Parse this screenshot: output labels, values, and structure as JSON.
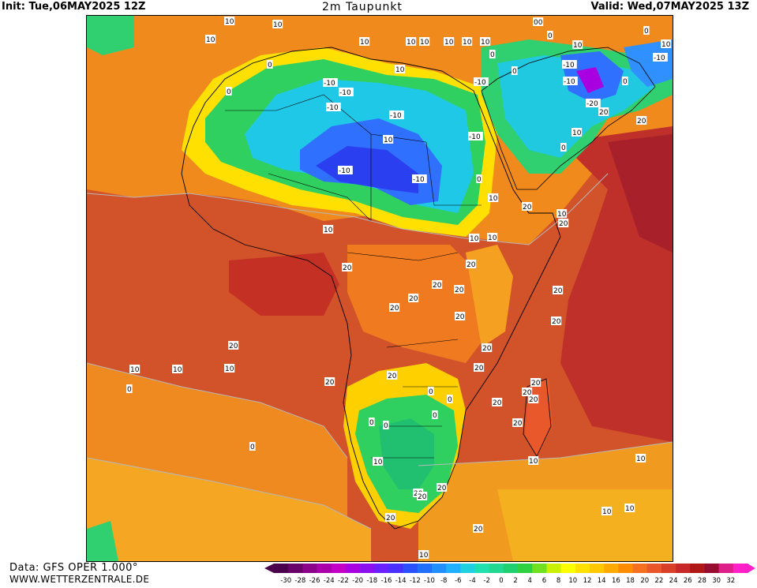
{
  "header": {
    "init": "Init: Tue,06MAY2025 12Z",
    "title": "2m Taupunkt",
    "valid": "Valid: Wed,07MAY2025 13Z"
  },
  "footer": {
    "data_source": "Data: GFS OPER 1.000°",
    "website": "WWW.WETTERZENTRALE.DE"
  },
  "legend": {
    "ticks": [
      "-30",
      "-28",
      "-26",
      "-24",
      "-22",
      "-20",
      "-18",
      "-16",
      "-14",
      "-12",
      "-10",
      "-8",
      "-6",
      "-4",
      "-2",
      "0",
      "2",
      "4",
      "6",
      "8",
      "10",
      "12",
      "14",
      "16",
      "18",
      "20",
      "22",
      "24",
      "26",
      "28",
      "30",
      "32"
    ],
    "colors": [
      "#4b004b",
      "#6a006a",
      "#8a008a",
      "#aa00aa",
      "#c400c8",
      "#a800e0",
      "#8a10f0",
      "#6b20ff",
      "#4a30ff",
      "#2a50ff",
      "#2070ff",
      "#2090ff",
      "#20b0ff",
      "#20d0e0",
      "#20e0b0",
      "#20d890",
      "#20d070",
      "#30d040",
      "#70e020",
      "#c8f000",
      "#ffff00",
      "#ffe000",
      "#ffc800",
      "#ffaa00",
      "#ff8c00",
      "#f47020",
      "#e8582a",
      "#d84028",
      "#c82828",
      "#b01818",
      "#980c30",
      "#e0208a",
      "#ff20c8"
    ]
  },
  "contour_labels": [
    "10",
    "10",
    "10",
    "10",
    "10",
    "10",
    "10",
    "10",
    "10",
    "10",
    "00",
    "0",
    "0",
    "10",
    "10",
    "0",
    "-10",
    "-10",
    "-10",
    "-10",
    "0",
    "0",
    "-10",
    "-20",
    "20",
    "20",
    "10",
    "0",
    "-10",
    "-10",
    "-10",
    "-10",
    "-10",
    "0",
    "0",
    "10",
    "-10",
    "0",
    "20",
    "10",
    "20",
    "10",
    "10",
    "10",
    "10",
    "20",
    "20",
    "20",
    "20",
    "20",
    "20",
    "20",
    "20",
    "20",
    "20",
    "20",
    "20",
    "20",
    "20",
    "20",
    "20",
    "20",
    "20",
    "20",
    "10",
    "10",
    "10",
    "0",
    "0",
    "0",
    "0",
    "0",
    "0",
    "0",
    "10",
    "20",
    "20",
    "20",
    "20",
    "10",
    "10",
    "20",
    "10",
    "10",
    "10"
  ]
}
